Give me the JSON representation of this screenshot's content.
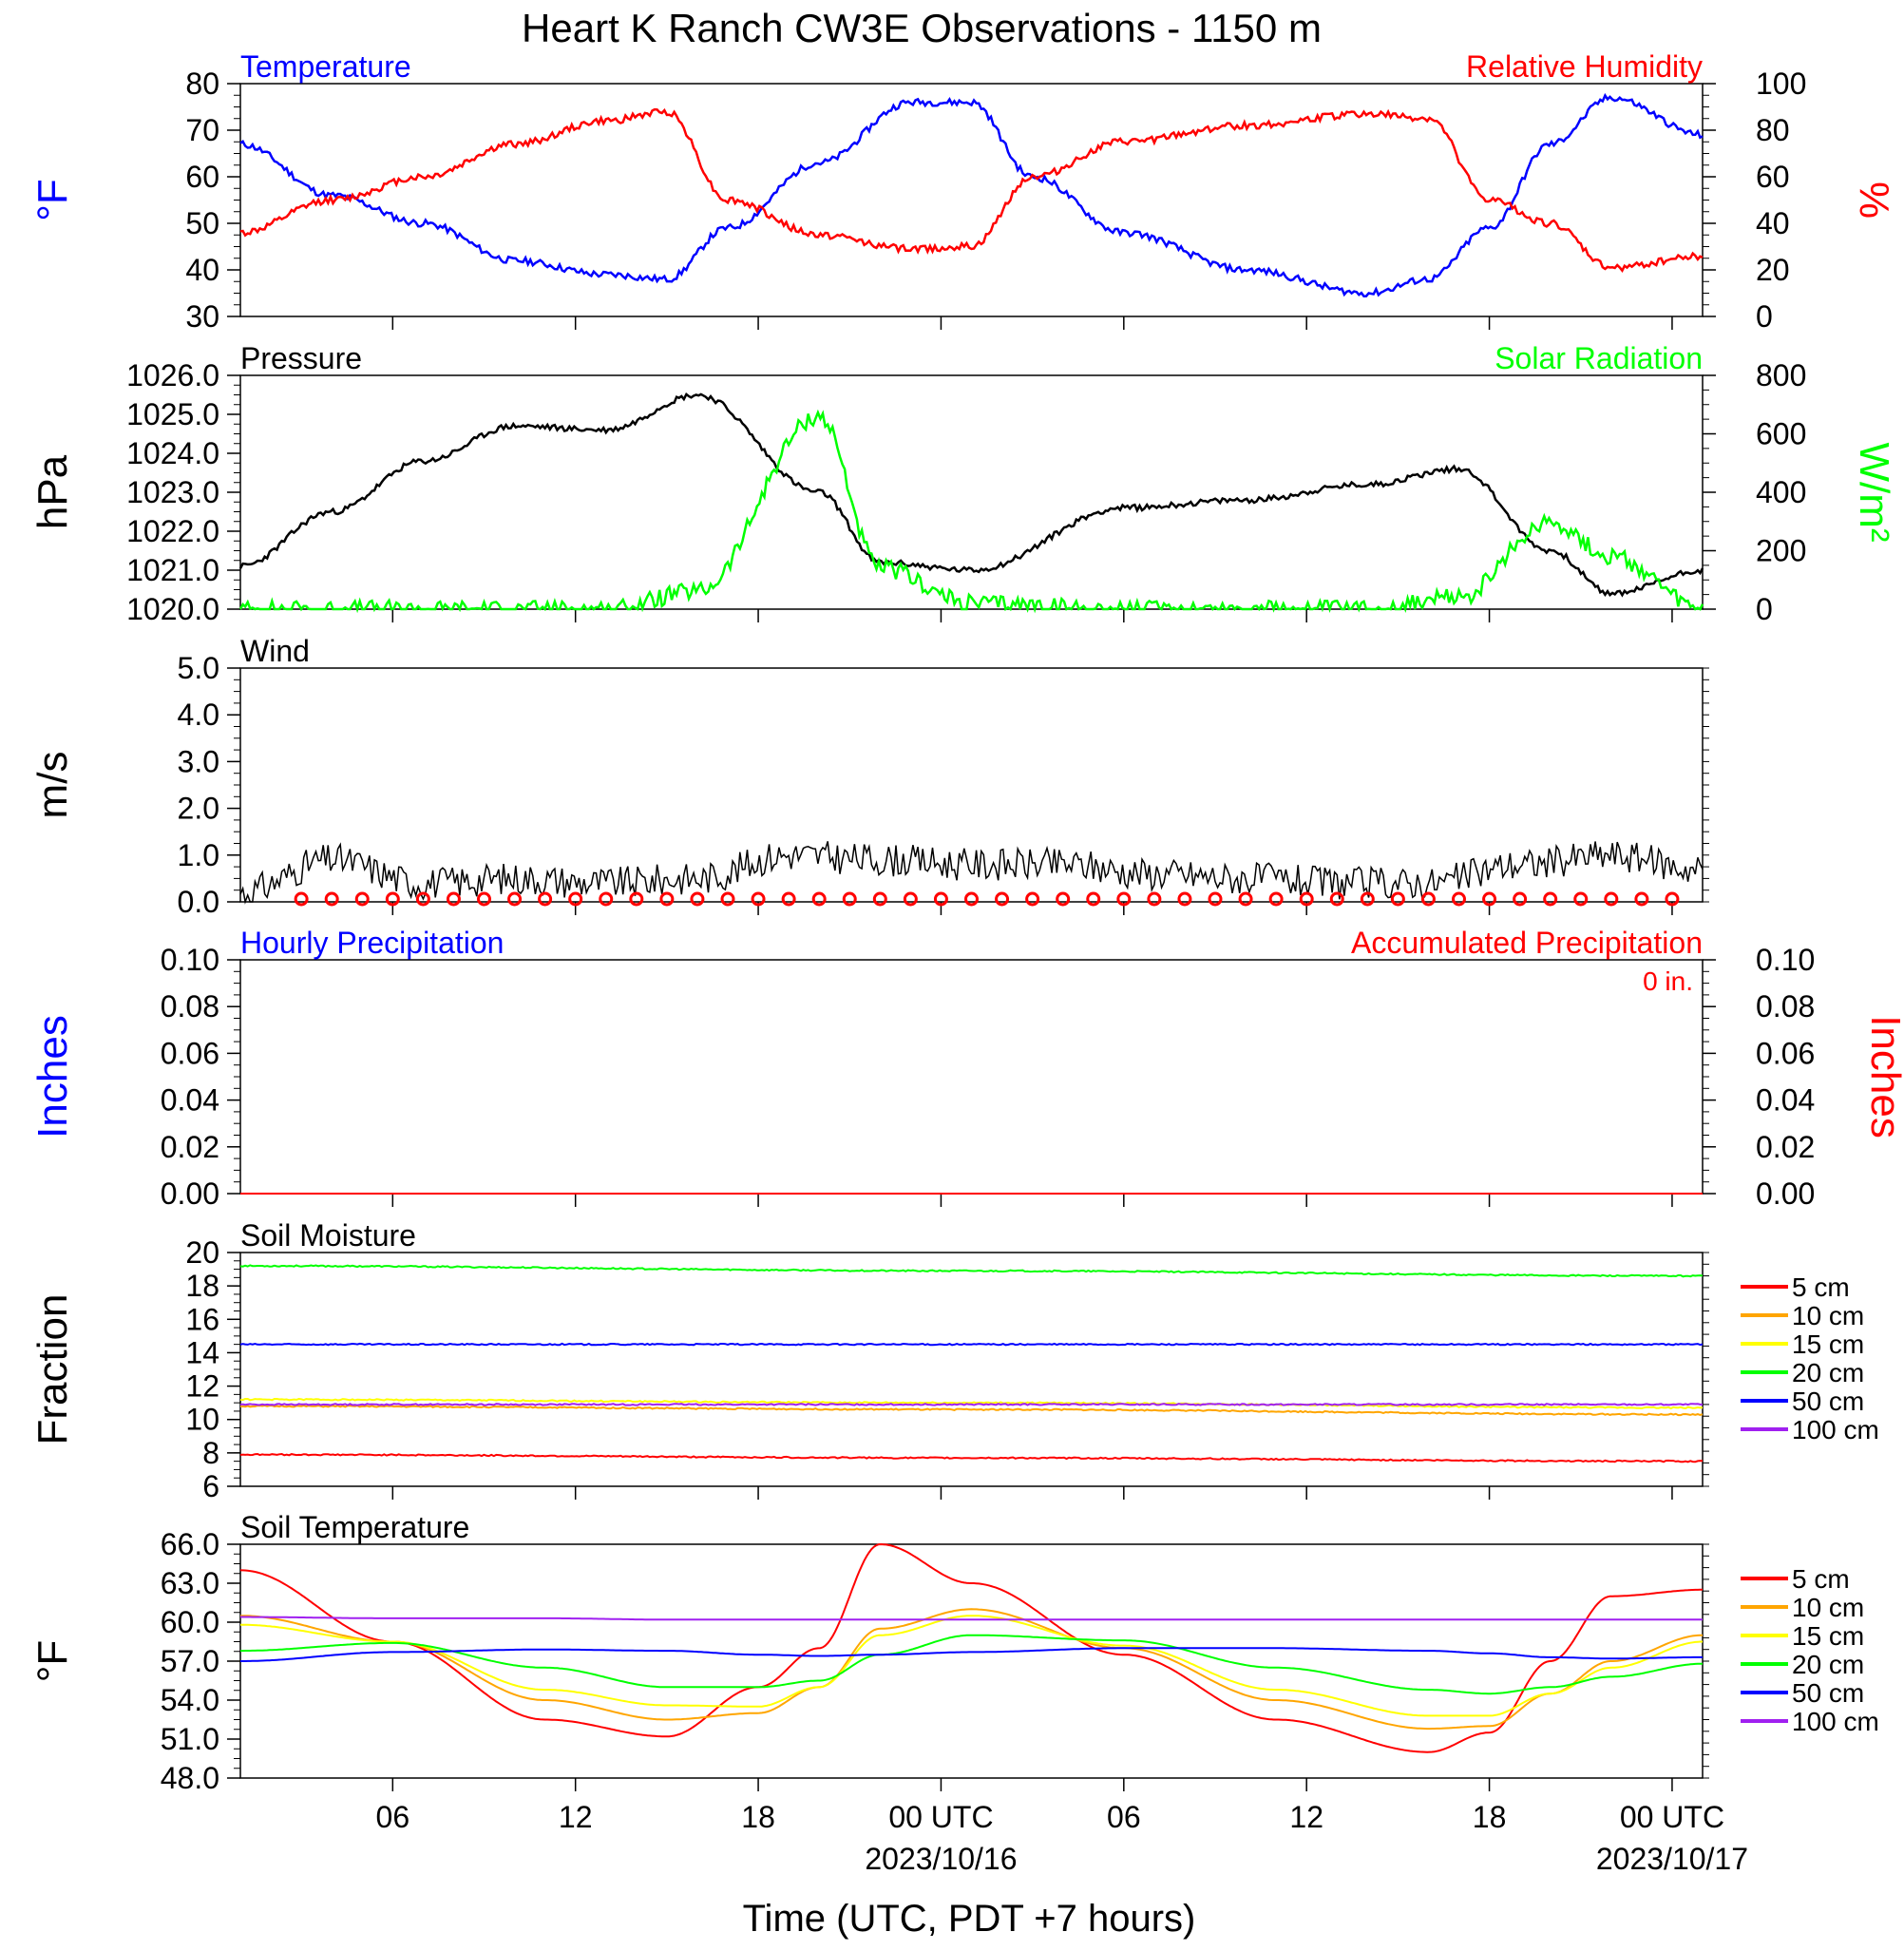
{
  "title": "Heart K Ranch CW3E Observations - 1150 m",
  "x_axis": {
    "label": "Time (UTC, PDT +7 hours)",
    "start": "2023-10-15T01:00Z",
    "end": "2023-10-17T01:00Z",
    "tick_labels": [
      "06",
      "12",
      "18",
      "00 UTC",
      "06",
      "12",
      "18",
      "00 UTC"
    ],
    "date_labels": [
      "2023/10/16",
      "2023/10/17"
    ]
  },
  "colors": {
    "temperature": "#0000ff",
    "humidity": "#ff0000",
    "pressure": "#000000",
    "solar": "#00ff00",
    "wind": "#000000",
    "barb": "#ff0000",
    "depth_5": "#ff0000",
    "depth_10": "#ffa500",
    "depth_15": "#ffff00",
    "depth_20": "#00ff00",
    "depth_50": "#0000ff",
    "depth_100": "#a020f0"
  },
  "panels": {
    "temp_rh": {
      "left_title": "Temperature",
      "right_title": "Relative Humidity",
      "left_unit": "°F",
      "right_unit": "%",
      "left_ticks": [
        "80",
        "70",
        "60",
        "50",
        "40",
        "30"
      ],
      "right_ticks": [
        "100",
        "80",
        "60",
        "40",
        "20",
        "0"
      ]
    },
    "pressure": {
      "left_title": "Pressure",
      "right_title": "Solar Radiation",
      "left_unit": "hPa",
      "right_unit": "W/m²",
      "left_ticks": [
        "1026.0",
        "1025.0",
        "1024.0",
        "1023.0",
        "1022.0",
        "1021.0",
        "1020.0"
      ],
      "right_ticks": [
        "800",
        "600",
        "400",
        "200",
        "0"
      ]
    },
    "wind": {
      "left_title": "Wind",
      "left_unit": "m/s",
      "left_ticks": [
        "5.0",
        "4.0",
        "3.0",
        "2.0",
        "1.0",
        "0.0"
      ]
    },
    "precip": {
      "left_title": "Hourly Precipitation",
      "right_title": "Accumulated Precipitation",
      "left_unit": "Inches",
      "right_unit": "Inches",
      "total_label": "0 in.",
      "left_ticks": [
        "0.10",
        "0.08",
        "0.06",
        "0.04",
        "0.02",
        "0.00"
      ],
      "right_ticks": [
        "0.10",
        "0.08",
        "0.06",
        "0.04",
        "0.02",
        "0.00"
      ]
    },
    "soil_moisture": {
      "left_title": "Soil Moisture",
      "left_unit": "Fraction",
      "left_ticks": [
        "20",
        "18",
        "16",
        "14",
        "12",
        "10",
        "8",
        "6"
      ]
    },
    "soil_temp": {
      "left_title": "Soil Temperature",
      "left_unit": "°F",
      "left_ticks": [
        "66.0",
        "63.0",
        "60.0",
        "57.0",
        "54.0",
        "51.0",
        "48.0"
      ]
    }
  },
  "legend_labels": [
    "5 cm",
    "10 cm",
    "15 cm",
    "20 cm",
    "50 cm",
    "100 cm"
  ],
  "chart_data": [
    {
      "type": "line",
      "title": "Temperature / Relative Humidity",
      "x": [
        "2023-10-15T01:00Z",
        "2023-10-15T04:00Z",
        "2023-10-15T07:00Z",
        "2023-10-15T10:00Z",
        "2023-10-15T13:00Z",
        "2023-10-15T15:00Z",
        "2023-10-15T17:00Z",
        "2023-10-15T20:00Z",
        "2023-10-15T23:00Z",
        "2023-10-16T01:00Z",
        "2023-10-16T03:00Z",
        "2023-10-16T06:00Z",
        "2023-10-16T10:00Z",
        "2023-10-16T14:00Z",
        "2023-10-16T16:00Z",
        "2023-10-16T18:00Z",
        "2023-10-16T20:00Z",
        "2023-10-16T22:00Z",
        "2023-10-17T01:00Z"
      ],
      "series": [
        {
          "name": "Temperature",
          "axis": "left",
          "unit": "°F",
          "ylim": [
            30,
            80
          ],
          "values": [
            67,
            56,
            50,
            42,
            39,
            38,
            49,
            63,
            76,
            76,
            60,
            48,
            40,
            35,
            38,
            49,
            67,
            77,
            69
          ]
        },
        {
          "name": "Relative Humidity",
          "axis": "right",
          "unit": "%",
          "ylim": [
            0,
            100
          ],
          "values": [
            36,
            50,
            60,
            74,
            84,
            88,
            50,
            35,
            29,
            30,
            60,
            75,
            82,
            87,
            85,
            50,
            40,
            21,
            26
          ]
        }
      ]
    },
    {
      "type": "line",
      "title": "Pressure / Solar Radiation",
      "x": [
        "2023-10-15T01:00Z",
        "2023-10-15T04:00Z",
        "2023-10-15T07:00Z",
        "2023-10-15T10:00Z",
        "2023-10-15T13:00Z",
        "2023-10-15T16:00Z",
        "2023-10-15T20:00Z",
        "2023-10-15T22:00Z",
        "2023-10-16T01:00Z",
        "2023-10-16T06:00Z",
        "2023-10-16T10:00Z",
        "2023-10-16T14:00Z",
        "2023-10-16T17:00Z",
        "2023-10-16T20:00Z",
        "2023-10-16T22:00Z",
        "2023-10-17T01:00Z"
      ],
      "series": [
        {
          "name": "Pressure",
          "axis": "left",
          "unit": "hPa",
          "ylim": [
            1020,
            1026
          ],
          "values": [
            1021.1,
            1022.5,
            1023.8,
            1024.7,
            1024.6,
            1025.5,
            1023.0,
            1021.2,
            1021.0,
            1022.6,
            1022.8,
            1023.2,
            1023.6,
            1021.5,
            1020.4,
            1021.0
          ]
        },
        {
          "name": "Solar Radiation",
          "axis": "right",
          "unit": "W/m²",
          "ylim": [
            0,
            800
          ],
          "values": [
            0,
            0,
            0,
            0,
            0,
            60,
            660,
            140,
            20,
            0,
            0,
            0,
            40,
            300,
            180,
            0
          ]
        }
      ]
    },
    {
      "type": "line",
      "title": "Wind",
      "x": [
        "2023-10-15T01:00Z",
        "2023-10-15T04:00Z",
        "2023-10-15T07:00Z",
        "2023-10-15T10:00Z",
        "2023-10-15T13:00Z",
        "2023-10-15T16:00Z",
        "2023-10-15T19:00Z",
        "2023-10-15T22:00Z",
        "2023-10-16T01:00Z",
        "2023-10-16T04:00Z",
        "2023-10-16T07:00Z",
        "2023-10-16T10:00Z",
        "2023-10-16T13:00Z",
        "2023-10-16T16:00Z",
        "2023-10-16T19:00Z",
        "2023-10-16T22:00Z",
        "2023-10-17T01:00Z"
      ],
      "series": [
        {
          "name": "Wind",
          "unit": "m/s",
          "ylim": [
            0,
            5
          ],
          "values": [
            0.2,
            0.9,
            0.4,
            0.5,
            0.4,
            0.5,
            1.0,
            0.9,
            0.8,
            0.8,
            0.6,
            0.5,
            0.4,
            0.4,
            0.8,
            1.0,
            0.7
          ]
        }
      ]
    },
    {
      "type": "line",
      "title": "Hourly Precipitation / Accumulated Precipitation",
      "x": [
        "2023-10-15T01:00Z",
        "2023-10-17T01:00Z"
      ],
      "series": [
        {
          "name": "Hourly Precipitation",
          "axis": "left",
          "unit": "Inches",
          "ylim": [
            0,
            0.1
          ],
          "values": [
            0,
            0
          ]
        },
        {
          "name": "Accumulated Precipitation",
          "axis": "right",
          "unit": "Inches",
          "ylim": [
            0,
            0.1
          ],
          "values": [
            0,
            0
          ]
        }
      ]
    },
    {
      "type": "line",
      "title": "Soil Moisture",
      "x": [
        "2023-10-15T01:00Z",
        "2023-10-16T01:00Z",
        "2023-10-17T01:00Z"
      ],
      "ylim": [
        6,
        20
      ],
      "series": [
        {
          "name": "5 cm",
          "values": [
            7.9,
            7.7,
            7.5
          ]
        },
        {
          "name": "10 cm",
          "values": [
            10.8,
            10.6,
            10.3
          ]
        },
        {
          "name": "15 cm",
          "values": [
            11.2,
            11.0,
            10.7
          ]
        },
        {
          "name": "20 cm",
          "values": [
            19.2,
            18.9,
            18.6
          ]
        },
        {
          "name": "50 cm",
          "values": [
            14.5,
            14.5,
            14.5
          ]
        },
        {
          "name": "100 cm",
          "values": [
            10.9,
            10.9,
            10.9
          ]
        }
      ]
    },
    {
      "type": "line",
      "title": "Soil Temperature",
      "x": [
        "2023-10-15T01:00Z",
        "2023-10-15T06:00Z",
        "2023-10-15T11:00Z",
        "2023-10-15T15:00Z",
        "2023-10-15T18:00Z",
        "2023-10-15T20:00Z",
        "2023-10-15T22:00Z",
        "2023-10-16T01:00Z",
        "2023-10-16T06:00Z",
        "2023-10-16T11:00Z",
        "2023-10-16T16:00Z",
        "2023-10-16T18:00Z",
        "2023-10-16T20:00Z",
        "2023-10-16T22:00Z",
        "2023-10-17T01:00Z"
      ],
      "ylim": [
        48,
        66
      ],
      "series": [
        {
          "name": "5 cm",
          "values": [
            64.0,
            58.5,
            52.5,
            51.2,
            55.0,
            58.0,
            66.0,
            63.0,
            57.5,
            52.5,
            50.0,
            51.5,
            57.0,
            62.0,
            62.5
          ]
        },
        {
          "name": "10 cm",
          "values": [
            60.5,
            58.5,
            54.0,
            52.5,
            53.0,
            55.0,
            59.5,
            61.0,
            58.0,
            54.0,
            51.8,
            52.0,
            54.5,
            57.0,
            59.0
          ]
        },
        {
          "name": "15 cm",
          "values": [
            59.8,
            58.5,
            54.8,
            53.6,
            53.5,
            55.0,
            59.0,
            60.5,
            58.2,
            54.8,
            52.8,
            52.8,
            54.5,
            56.5,
            58.5
          ]
        },
        {
          "name": "20 cm",
          "values": [
            57.8,
            58.4,
            56.5,
            55.0,
            55.0,
            55.5,
            57.5,
            59.0,
            58.6,
            56.5,
            54.8,
            54.5,
            55.0,
            55.8,
            56.8
          ]
        },
        {
          "name": "50 cm",
          "values": [
            57.0,
            57.7,
            57.9,
            57.8,
            57.5,
            57.4,
            57.5,
            57.7,
            58.0,
            58.0,
            57.8,
            57.6,
            57.3,
            57.2,
            57.3
          ]
        },
        {
          "name": "100 cm",
          "values": [
            60.4,
            60.3,
            60.3,
            60.2,
            60.2,
            60.2,
            60.2,
            60.2,
            60.2,
            60.2,
            60.2,
            60.2,
            60.2,
            60.2,
            60.2
          ]
        }
      ]
    }
  ]
}
